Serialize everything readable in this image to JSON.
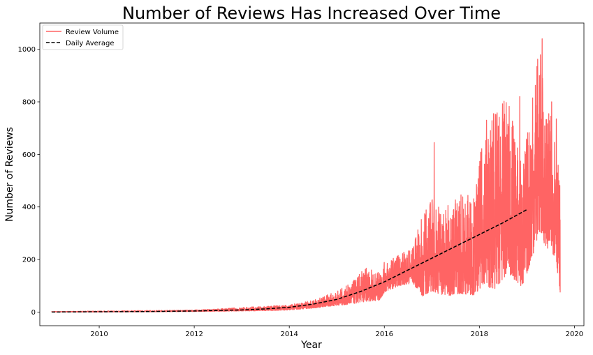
{
  "chart_data": {
    "type": "line",
    "title": "Number of Reviews Has Increased Over Time",
    "xlabel": "Year",
    "ylabel": "Number of Reviews",
    "xlim": [
      2008.75,
      2020.2
    ],
    "ylim": [
      -52,
      1100
    ],
    "x_ticks": [
      2010,
      2012,
      2014,
      2016,
      2018,
      2020
    ],
    "y_ticks": [
      0,
      200,
      400,
      600,
      800,
      1000
    ],
    "grid": false,
    "legend_position": "top-left",
    "series": [
      {
        "name": "Review Volume",
        "style": "solid",
        "color": "#ff6464",
        "envelope": {
          "x": [
            2009.0,
            2010.0,
            2011.0,
            2012.0,
            2012.5,
            2013.0,
            2013.5,
            2014.0,
            2014.5,
            2015.0,
            2015.3,
            2015.6,
            2015.9,
            2016.0,
            2016.3,
            2016.6,
            2016.8,
            2017.0,
            2017.3,
            2017.6,
            2017.9,
            2018.1,
            2018.3,
            2018.6,
            2018.9,
            2019.1,
            2019.25,
            2019.4,
            2019.6,
            2019.7
          ],
          "low": [
            0,
            0,
            1,
            2,
            3,
            4,
            5,
            8,
            15,
            25,
            30,
            40,
            45,
            75,
            100,
            110,
            60,
            80,
            60,
            70,
            65,
            110,
            80,
            150,
            90,
            200,
            300,
            250,
            210,
            80
          ],
          "high": [
            2,
            4,
            6,
            8,
            12,
            18,
            22,
            28,
            45,
            80,
            110,
            170,
            150,
            190,
            220,
            250,
            370,
            450,
            400,
            470,
            450,
            700,
            760,
            820,
            570,
            800,
            1040,
            780,
            720,
            480
          ]
        },
        "peaks": [
          [
            2017.05,
            645
          ],
          [
            2018.15,
            730
          ],
          [
            2018.3,
            755
          ],
          [
            2018.85,
            820
          ],
          [
            2019.12,
            815
          ],
          [
            2019.32,
            1040
          ],
          [
            2019.52,
            800
          ],
          [
            2019.62,
            735
          ]
        ]
      },
      {
        "name": "Daily Average",
        "style": "dashed",
        "color": "#000000",
        "x": [
          2009.0,
          2010.0,
          2011.0,
          2012.0,
          2012.5,
          2013.0,
          2013.5,
          2014.0,
          2014.5,
          2015.0,
          2015.5,
          2016.0,
          2016.5,
          2017.0,
          2017.5,
          2018.0,
          2018.5,
          2019.0
        ],
        "values": [
          0,
          1,
          2,
          4,
          6,
          8,
          12,
          18,
          30,
          48,
          78,
          115,
          160,
          205,
          250,
          295,
          340,
          390
        ]
      }
    ]
  }
}
